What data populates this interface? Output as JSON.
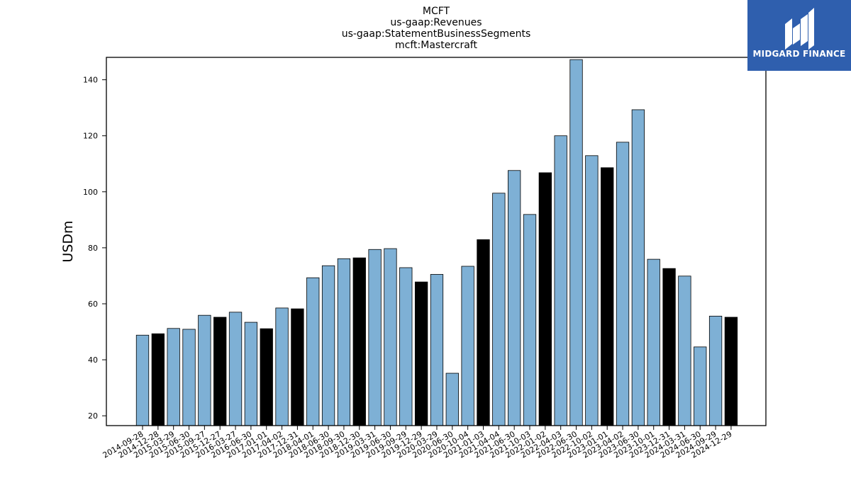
{
  "title_lines": [
    "MCFT",
    "us-gaap:Revenues",
    "us-gaap:StatementBusinessSegments",
    "mcft:Mastercraft"
  ],
  "logo": {
    "text": "MIDGARD FINANCE",
    "color": "#2f5fae"
  },
  "chart_data": {
    "type": "bar",
    "title": "MCFT\nus-gaap:Revenues\nus-gaap:StatementBusinessSegments\nmcft:Mastercraft",
    "xlabel": "",
    "ylabel": "USDm",
    "ylim": [
      16.5,
      148
    ],
    "yticks": [
      20,
      40,
      60,
      80,
      100,
      120,
      140
    ],
    "grid": false,
    "legend": "none",
    "colors": {
      "quarter": "#7eb0d5",
      "year_end": "#000000",
      "edge": "#000000"
    },
    "categories": [
      "2014-09-28",
      "2014-12-28",
      "2015-03-29",
      "2015-06-30",
      "2015-09-27",
      "2015-12-27",
      "2016-03-27",
      "2016-06-30",
      "2017-01-01",
      "2017-04-02",
      "2017-12-31",
      "2018-04-01",
      "2018-06-30",
      "2018-09-30",
      "2018-12-30",
      "2019-03-31",
      "2019-06-30",
      "2019-09-29",
      "2019-12-29",
      "2020-03-29",
      "2020-06-30",
      "2020-10-04",
      "2021-01-03",
      "2021-04-04",
      "2021-06-30",
      "2021-10-03",
      "2022-01-02",
      "2022-04-03",
      "2022-06-30",
      "2022-10-02",
      "2023-01-01",
      "2023-04-02",
      "2023-06-30",
      "2023-10-01",
      "2023-12-31",
      "2024-03-31",
      "2024-06-30",
      "2024-09-29",
      "2024-12-29"
    ],
    "values": [
      48.8,
      49.3,
      51.2,
      50.9,
      55.9,
      55.2,
      57.0,
      53.4,
      51.1,
      58.5,
      58.2,
      69.3,
      73.6,
      76.1,
      76.4,
      79.4,
      79.7,
      72.9,
      67.8,
      70.5,
      35.2,
      73.4,
      82.9,
      99.5,
      107.6,
      91.9,
      106.8,
      120.0,
      147.2,
      112.9,
      108.6,
      117.7,
      129.3,
      75.9,
      72.6,
      69.9,
      44.6,
      55.6,
      55.2
    ],
    "highlight": [
      false,
      true,
      false,
      false,
      false,
      true,
      false,
      false,
      true,
      false,
      true,
      false,
      false,
      false,
      true,
      false,
      false,
      false,
      true,
      false,
      false,
      false,
      true,
      false,
      false,
      false,
      true,
      false,
      false,
      false,
      true,
      false,
      false,
      false,
      true,
      false,
      false,
      false,
      true
    ]
  }
}
